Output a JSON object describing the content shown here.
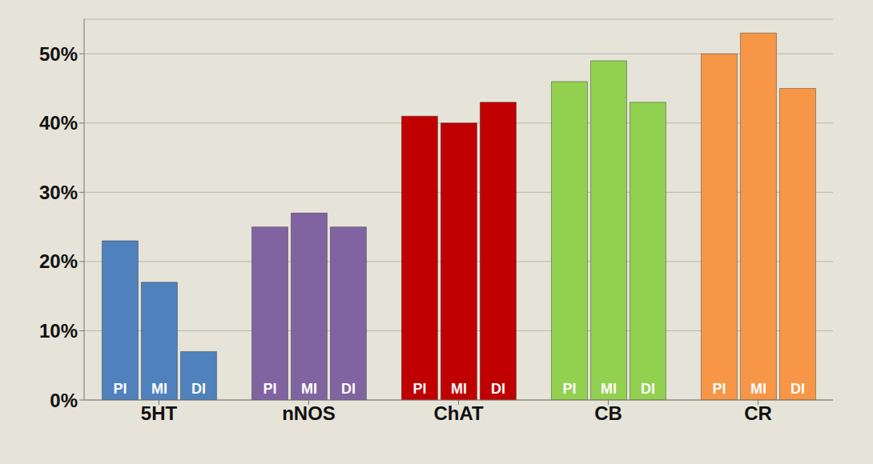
{
  "chart_data": {
    "type": "bar",
    "categories": [
      "5HT",
      "nNOS",
      "ChAT",
      "CB",
      "CR"
    ],
    "colors": [
      "#4f81bd",
      "#8064a2",
      "#c00000",
      "#92d050",
      "#f79646"
    ],
    "series": [
      {
        "name": "PI",
        "values": [
          23,
          25,
          41,
          46,
          50
        ]
      },
      {
        "name": "MI",
        "values": [
          17,
          27,
          40,
          49,
          53
        ]
      },
      {
        "name": "DI",
        "values": [
          7,
          25,
          43,
          43,
          45
        ]
      }
    ],
    "ylim": [
      0,
      55
    ],
    "yticks": [
      {
        "value": 0,
        "label": "0%"
      },
      {
        "value": 10,
        "label": "10%"
      },
      {
        "value": 20,
        "label": "20%"
      },
      {
        "value": 30,
        "label": "30%"
      },
      {
        "value": 40,
        "label": "40%"
      },
      {
        "value": 50,
        "label": "50%"
      }
    ],
    "grid": true
  }
}
